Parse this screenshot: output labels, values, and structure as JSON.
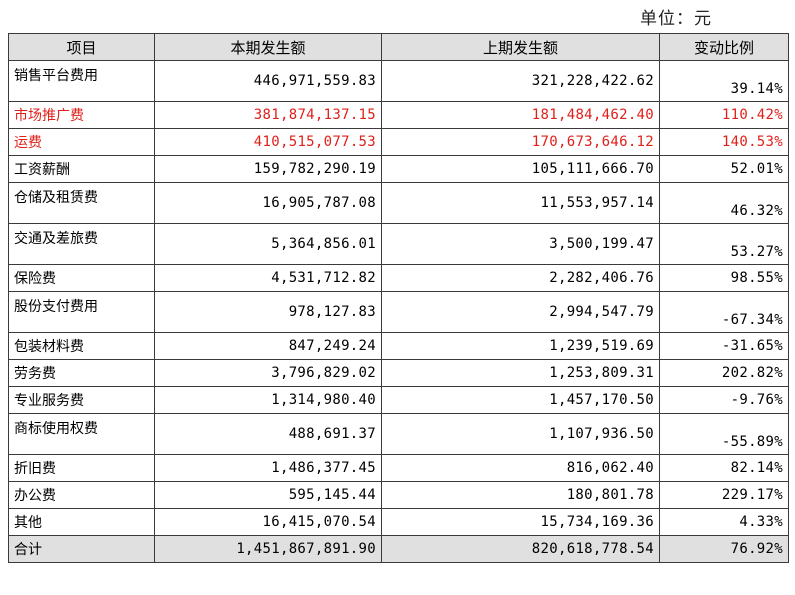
{
  "unit_label": "单位：元",
  "columns": [
    "项目",
    "本期发生额",
    "上期发生额",
    "变动比例"
  ],
  "rows": [
    {
      "item": "销售平台费用",
      "current": "446,971,559.83",
      "previous": "321,228,422.62",
      "change": "39.14%"
    },
    {
      "item": "市场推广费",
      "current": "381,874,137.15",
      "previous": "181,484,462.40",
      "change": "110.42%"
    },
    {
      "item": "运费",
      "current": "410,515,077.53",
      "previous": "170,673,646.12",
      "change": "140.53%"
    },
    {
      "item": "工资薪酬",
      "current": "159,782,290.19",
      "previous": "105,111,666.70",
      "change": "52.01%"
    },
    {
      "item": "仓储及租赁费",
      "current": "16,905,787.08",
      "previous": "11,553,957.14",
      "change": "46.32%"
    },
    {
      "item": "交通及差旅费",
      "current": "5,364,856.01",
      "previous": "3,500,199.47",
      "change": "53.27%"
    },
    {
      "item": "保险费",
      "current": "4,531,712.82",
      "previous": "2,282,406.76",
      "change": "98.55%"
    },
    {
      "item": "股份支付费用",
      "current": "978,127.83",
      "previous": "2,994,547.79",
      "change": "-67.34%"
    },
    {
      "item": "包装材料费",
      "current": "847,249.24",
      "previous": "1,239,519.69",
      "change": "-31.65%"
    },
    {
      "item": "劳务费",
      "current": "3,796,829.02",
      "previous": "1,253,809.31",
      "change": "202.82%"
    },
    {
      "item": "专业服务费",
      "current": "1,314,980.40",
      "previous": "1,457,170.50",
      "change": "-9.76%"
    },
    {
      "item": "商标使用权费",
      "current": "488,691.37",
      "previous": "1,107,936.50",
      "change": "-55.89%"
    },
    {
      "item": "折旧费",
      "current": "1,486,377.45",
      "previous": "816,062.40",
      "change": "82.14%"
    },
    {
      "item": "办公费",
      "current": "595,145.44",
      "previous": "180,801.78",
      "change": "229.17%"
    },
    {
      "item": "其他",
      "current": "16,415,070.54",
      "previous": "15,734,169.36",
      "change": "4.33%"
    }
  ],
  "total": {
    "item": "合计",
    "current": "1,451,867,891.90",
    "previous": "820,618,778.54",
    "change": "76.92%"
  },
  "colors": {
    "highlight_text": "#e0201a",
    "header_bg": "#e0e0e0",
    "border": "#3a3a3a"
  }
}
